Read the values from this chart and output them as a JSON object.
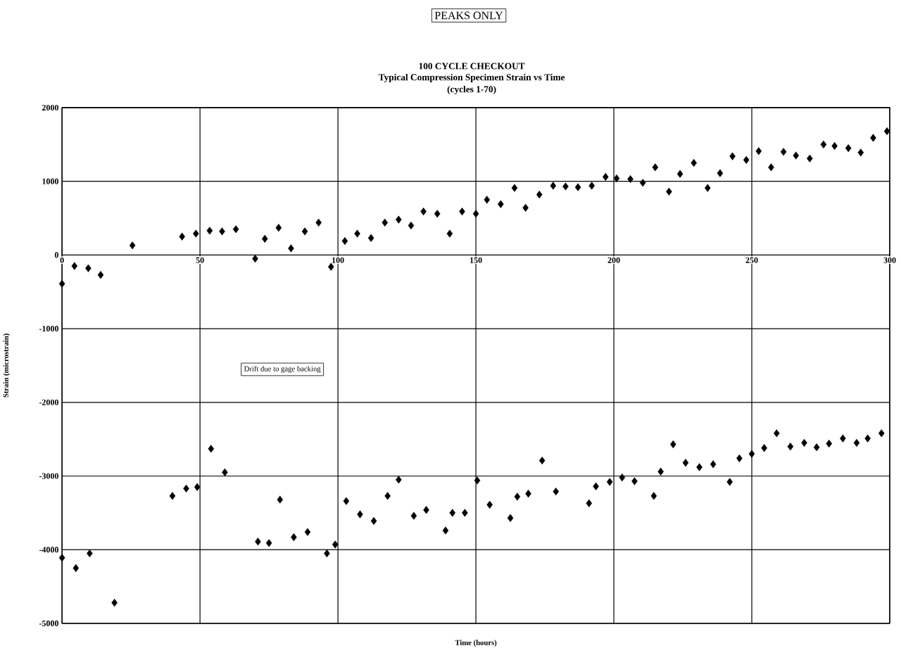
{
  "chart_data": {
    "type": "scatter",
    "title": "100 CYCLE CHECKOUT",
    "subtitle": "Typical Compression Specimen Strain vs Time",
    "xlabel": "Time (hours)",
    "ylabel": "Strain (microstrain)",
    "annotations": [
      "PEAKS ONLY",
      "(cycles 1-70)",
      "Drift due to gage backing"
    ],
    "xlim": [
      0,
      300
    ],
    "xticks": [
      0,
      50,
      100,
      150,
      200,
      250,
      300
    ],
    "ylim": [
      -5000,
      2000
    ],
    "yticks": [
      -5000,
      -4000,
      -3000,
      -2000,
      -1000,
      0,
      1000,
      2000
    ],
    "grid": true,
    "marker": "diamond",
    "series": [
      {
        "color": "#000000",
        "x": [
          0,
          4.5,
          9.5,
          14,
          25.5,
          43.5,
          48.5,
          53.5,
          58,
          63,
          70,
          73.5,
          78.5,
          83,
          88,
          93,
          97.5,
          102.5,
          107,
          112,
          117,
          122,
          126.5,
          131,
          136,
          140.5,
          145,
          150,
          154,
          159,
          164,
          168,
          173,
          178,
          182.5,
          187,
          192,
          197,
          201,
          206,
          210.5,
          215,
          220,
          224,
          229,
          234,
          238.5,
          243,
          248,
          252.5,
          257,
          261.5,
          266,
          271,
          276,
          280,
          285,
          289.5,
          294,
          299
        ],
        "values": [
          -390,
          -150,
          -180,
          -270,
          130,
          250,
          290,
          330,
          320,
          350,
          -50,
          220,
          370,
          90,
          320,
          440,
          -160,
          190,
          290,
          230,
          440,
          480,
          400,
          590,
          560,
          290,
          590,
          560,
          750,
          690,
          910,
          640,
          820,
          940,
          930,
          920,
          940,
          1060,
          1040,
          1030,
          980,
          1190,
          860,
          1100,
          1250,
          910,
          1110,
          1340,
          1290,
          1410,
          1190,
          1400,
          1350,
          1310,
          1500,
          1480,
          1450,
          1390,
          1590,
          1680
        ]
      },
      {
        "color": "#000000",
        "x": [
          0,
          5,
          10,
          19,
          40,
          45,
          49,
          54,
          59,
          71,
          75,
          79,
          84,
          89,
          96,
          99,
          103,
          108,
          113,
          118,
          122,
          127.5,
          132,
          139,
          141.5,
          146,
          150.5,
          155,
          162.5,
          165,
          169,
          174,
          179,
          191,
          193.5,
          198.5,
          203,
          207.5,
          214.5,
          217,
          221.5,
          226,
          231,
          236,
          242,
          245.5,
          250,
          254.5,
          259,
          264,
          269,
          273.5,
          278,
          283,
          288,
          292,
          297
        ],
        "values": [
          -4110,
          -4250,
          -4050,
          -4720,
          -3270,
          -3170,
          -3150,
          -2630,
          -2950,
          -3890,
          -3910,
          -3320,
          -3830,
          -3760,
          -4050,
          -3930,
          -3340,
          -3520,
          -3610,
          -3270,
          -3050,
          -3540,
          -3460,
          -3740,
          -3500,
          -3500,
          -3060,
          -3390,
          -3570,
          -3280,
          -3240,
          -2790,
          -3210,
          -3370,
          -3140,
          -3080,
          -3020,
          -3070,
          -3270,
          -2940,
          -2570,
          -2820,
          -2880,
          -2840,
          -3080,
          -2760,
          -2700,
          -2620,
          -2420,
          -2600,
          -2550,
          -2610,
          -2560,
          -2490,
          -2550,
          -2490,
          -2420
        ]
      }
    ]
  }
}
